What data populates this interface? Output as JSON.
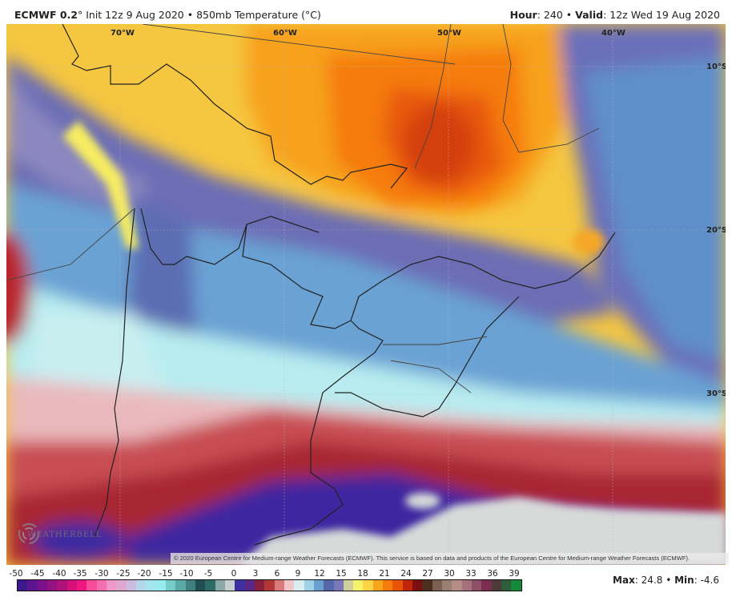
{
  "header": {
    "model_bold": "ECMWF 0.2",
    "degree": "°",
    "init": " Init 12z 9 Aug 2020",
    "sep": " • ",
    "field": "850mb Temperature (°C)",
    "hour_label": "Hour",
    "hour_value": ": 240",
    "valid_label": "Valid",
    "valid_value": ": 12z Wed 19 Aug 2020"
  },
  "map": {
    "longitude_labels": [
      "70°W",
      "60°W",
      "50°W",
      "40°W"
    ],
    "latitude_labels": [
      "10°S",
      "20°S",
      "30°S"
    ],
    "credit": "© 2020 European Centre for Medium-range Weather Forecasts (ECMWF). This service is based on data and products of the European Centre for Medium-range Weather Forecasts (ECMWF).",
    "watermark": "WEATHERBELL"
  },
  "colorbar": {
    "ticks": [
      "-50",
      "-45",
      "-40",
      "-35",
      "-30",
      "-25",
      "-20",
      "-15",
      "-10",
      "-5",
      "0",
      "3",
      "6",
      "9",
      "12",
      "15",
      "18",
      "21",
      "24",
      "27",
      "30",
      "33",
      "36",
      "39"
    ],
    "colors": [
      "#3d1a8c",
      "#5c1491",
      "#7a108a",
      "#951281",
      "#b0127c",
      "#d4107a",
      "#ee1681",
      "#f74c9a",
      "#f56fb0",
      "#ef97c6",
      "#dfa8d2",
      "#cbbde0",
      "#b5d7ea",
      "#a3e6f0",
      "#96ecef",
      "#74cbc8",
      "#5aa9a7",
      "#3f7f7f",
      "#1f4f53",
      "#2e6a66",
      "#8aa9a6",
      "#c8cfcf",
      "#3f2fa0",
      "#5a2785",
      "#86203e",
      "#b23838",
      "#d97b7b",
      "#f0c6c8",
      "#d8eef0",
      "#9fd2e6",
      "#6aa0d0",
      "#5567a8",
      "#7a78bb",
      "#cfcf9b",
      "#f7f26c",
      "#fcd444",
      "#f7a61c",
      "#f57b0d",
      "#e85508",
      "#c0250a",
      "#7c0f0f",
      "#4d2f1f",
      "#7a6050",
      "#9a7f73",
      "#b58d86",
      "#a4707a",
      "#8e4f67",
      "#7b2e4f",
      "#4f3a3a",
      "#2f5c3c",
      "#128a3a"
    ]
  },
  "stats": {
    "max_label": "Max",
    "max_value": ": 24.8",
    "sep": " • ",
    "min_label": "Min",
    "min_value": ": -4.6"
  }
}
